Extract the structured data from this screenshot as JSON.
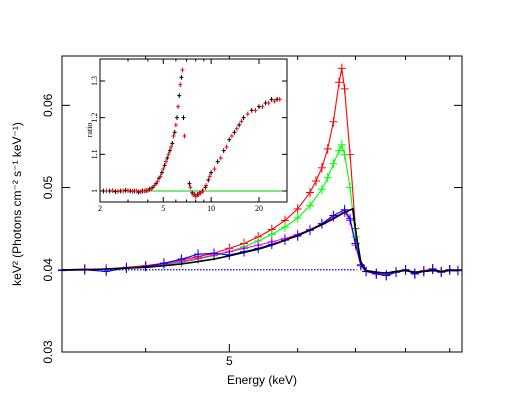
{
  "chart_data": [
    {
      "id": "main",
      "type": "line",
      "xlabel": "Energy (keV)",
      "ylabel": "keV² (Photons cm⁻² s⁻¹ keV⁻¹)",
      "xscale": "log",
      "xlim": [
        3.2,
        9.3
      ],
      "ylim": [
        0.03,
        0.066
      ],
      "x_ticks": [
        5
      ],
      "x_tick_labels": [
        "5"
      ],
      "y_ticks": [
        0.03,
        0.04,
        0.05,
        0.06
      ],
      "y_tick_labels": [
        "0.03",
        "0.04",
        "0.05",
        "0.06"
      ],
      "grid": false,
      "continuum": {
        "color": "#0000ff",
        "style": "dotted",
        "x": [
          3.2,
          7.02
        ],
        "y": [
          0.04,
          0.04
        ]
      },
      "series": [
        {
          "color": "#ff0000",
          "style": "line+errorbars",
          "x": [
            3.2,
            3.4,
            3.6,
            3.8,
            4.0,
            4.2,
            4.4,
            4.6,
            4.8,
            5.0,
            5.2,
            5.4,
            5.6,
            5.8,
            6.0,
            6.2,
            6.3,
            6.4,
            6.5,
            6.6,
            6.7,
            6.75,
            6.8,
            6.9,
            7.0,
            7.1,
            7.2,
            7.4,
            7.6,
            7.8,
            8.0,
            8.2,
            8.4,
            8.6,
            8.8,
            9.0,
            9.2
          ],
          "y": [
            0.04,
            0.0401,
            0.0401,
            0.0403,
            0.0405,
            0.0408,
            0.0412,
            0.0416,
            0.042,
            0.0426,
            0.0432,
            0.044,
            0.0449,
            0.046,
            0.0474,
            0.0494,
            0.0508,
            0.0524,
            0.0547,
            0.058,
            0.0628,
            0.0645,
            0.062,
            0.054,
            0.045,
            0.0405,
            0.0398,
            0.0395,
            0.0393,
            0.0397,
            0.04,
            0.0395,
            0.0399,
            0.0401,
            0.0398,
            0.04,
            0.0399
          ]
        },
        {
          "color": "#00ff00",
          "style": "line+errorbars",
          "x": [
            3.2,
            3.4,
            3.6,
            3.8,
            4.0,
            4.2,
            4.4,
            4.6,
            4.8,
            5.0,
            5.2,
            5.4,
            5.6,
            5.8,
            6.0,
            6.2,
            6.4,
            6.5,
            6.6,
            6.7,
            6.75,
            6.8,
            6.9,
            7.0,
            7.1,
            7.2,
            7.4,
            7.6,
            7.8,
            8.0,
            8.2,
            8.4,
            8.6,
            8.8,
            9.0,
            9.2
          ],
          "y": [
            0.04,
            0.0401,
            0.0401,
            0.0402,
            0.0404,
            0.0406,
            0.0409,
            0.0413,
            0.0417,
            0.0422,
            0.0428,
            0.0435,
            0.0443,
            0.0452,
            0.0463,
            0.0478,
            0.0498,
            0.0512,
            0.0529,
            0.0545,
            0.0552,
            0.054,
            0.05,
            0.044,
            0.0405,
            0.0398,
            0.0396,
            0.0394,
            0.0397,
            0.0399,
            0.0396,
            0.0398,
            0.04,
            0.0397,
            0.04,
            0.0399
          ]
        },
        {
          "color": "#ff00ff",
          "style": "line+errorbars",
          "x": [
            3.2,
            3.4,
            3.6,
            3.8,
            4.0,
            4.2,
            4.4,
            4.6,
            4.8,
            5.0,
            5.2,
            5.4,
            5.6,
            5.8,
            6.0,
            6.2,
            6.4,
            6.6,
            6.8,
            6.9,
            7.0,
            7.1,
            7.2,
            7.4,
            7.6,
            7.8,
            8.0,
            8.2,
            8.4,
            8.6,
            8.8,
            9.0,
            9.2
          ],
          "y": [
            0.04,
            0.0401,
            0.0401,
            0.0402,
            0.0404,
            0.0407,
            0.041,
            0.0414,
            0.0418,
            0.0422,
            0.0426,
            0.043,
            0.0434,
            0.0438,
            0.0443,
            0.0449,
            0.0456,
            0.0464,
            0.047,
            0.046,
            0.043,
            0.0405,
            0.0398,
            0.0396,
            0.0394,
            0.0398,
            0.04,
            0.0396,
            0.0398,
            0.0401,
            0.0398,
            0.04,
            0.0399
          ]
        },
        {
          "color": "#0000ff",
          "style": "line+errorbars",
          "x": [
            3.2,
            3.4,
            3.6,
            3.8,
            4.0,
            4.2,
            4.4,
            4.6,
            4.8,
            5.0,
            5.2,
            5.4,
            5.6,
            5.8,
            6.0,
            6.2,
            6.4,
            6.6,
            6.8,
            6.9,
            7.0,
            7.1,
            7.2,
            7.4,
            7.6,
            7.8,
            8.0,
            8.2,
            8.4,
            8.6,
            8.8,
            9.0,
            9.2
          ],
          "y": [
            0.0399,
            0.04,
            0.0398,
            0.0402,
            0.0404,
            0.0408,
            0.0413,
            0.0419,
            0.042,
            0.0418,
            0.0422,
            0.0426,
            0.0431,
            0.0436,
            0.0441,
            0.0448,
            0.0456,
            0.0466,
            0.0473,
            0.0462,
            0.0432,
            0.0406,
            0.0398,
            0.0395,
            0.0393,
            0.0397,
            0.04,
            0.0395,
            0.0398,
            0.0401,
            0.0397,
            0.04,
            0.0399
          ]
        },
        {
          "color": "#000000",
          "style": "line",
          "x": [
            3.2,
            3.4,
            3.6,
            3.8,
            4.0,
            4.2,
            4.4,
            4.6,
            4.8,
            5.0,
            5.2,
            5.4,
            5.6,
            5.8,
            6.0,
            6.2,
            6.4,
            6.6,
            6.8,
            6.95,
            7.02,
            7.1,
            7.2,
            7.4,
            7.6,
            7.8,
            8.0,
            8.2,
            8.4,
            8.6,
            8.8,
            9.0,
            9.2
          ],
          "y": [
            0.04,
            0.04,
            0.0401,
            0.0402,
            0.0403,
            0.0405,
            0.0407,
            0.041,
            0.0413,
            0.0417,
            0.0421,
            0.0425,
            0.043,
            0.0436,
            0.0442,
            0.0448,
            0.0455,
            0.0462,
            0.047,
            0.0474,
            0.044,
            0.041,
            0.0399,
            0.0397,
            0.0396,
            0.0398,
            0.0399,
            0.0397,
            0.0398,
            0.0399,
            0.0398,
            0.0399,
            0.0399
          ]
        }
      ]
    },
    {
      "id": "inset",
      "type": "scatter",
      "xlabel": "",
      "ylabel": "ratio",
      "xscale": "log",
      "xlim": [
        2,
        30
      ],
      "ylim": [
        0.97,
        1.36
      ],
      "x_ticks": [
        2,
        5,
        10,
        20
      ],
      "x_tick_labels": [
        "2",
        "5",
        "10",
        "20"
      ],
      "y_ticks": [
        1.0,
        1.1,
        1.2,
        1.3
      ],
      "y_tick_labels": [
        "1",
        "1.1",
        "1.2",
        "1.3"
      ],
      "grid": false,
      "reference_line": {
        "color": "#00cc00",
        "y": 1.0
      },
      "series": [
        {
          "color": "#000000",
          "style": "errorbars",
          "x": [
            2.1,
            2.3,
            2.5,
            2.7,
            2.9,
            3.1,
            3.3,
            3.5,
            3.7,
            3.9,
            4.1,
            4.3,
            4.5,
            4.7,
            4.9,
            5.1,
            5.3,
            5.5,
            5.7,
            5.9,
            6.1,
            6.3,
            6.5,
            6.7,
            7.3,
            7.6,
            7.9,
            8.2,
            8.5,
            8.8,
            9.2,
            9.6,
            10.0,
            11.0,
            12.0,
            13.0,
            14.0,
            15.0,
            16.0,
            18.0,
            20.0,
            22.0,
            24.0,
            26.0
          ],
          "y": [
            1.0,
            1.0,
            0.998,
            1.0,
            1.002,
            1.0,
            1.0,
            0.997,
            1.0,
            1.001,
            1.005,
            1.01,
            1.02,
            1.035,
            1.05,
            1.07,
            1.09,
            1.11,
            1.13,
            1.16,
            1.2,
            1.26,
            1.31,
            1.2,
            1.02,
            0.995,
            0.99,
            0.99,
            0.995,
            1.0,
            1.01,
            1.03,
            1.05,
            1.08,
            1.11,
            1.14,
            1.16,
            1.18,
            1.2,
            1.22,
            1.23,
            1.24,
            1.25,
            1.25
          ]
        },
        {
          "color": "#ff0000",
          "style": "errorbars",
          "x": [
            2.2,
            2.4,
            2.6,
            2.8,
            3.0,
            3.2,
            3.4,
            3.6,
            3.8,
            4.0,
            4.2,
            4.4,
            4.6,
            4.8,
            5.0,
            5.2,
            5.4,
            5.6,
            5.8,
            6.0,
            6.2,
            6.4,
            6.6,
            6.8,
            7.4,
            7.7,
            8.0,
            8.3,
            8.6,
            8.9,
            9.3,
            9.8,
            10.5,
            11.5,
            12.5,
            13.5,
            14.5,
            15.5,
            17.0,
            19.0,
            21.0,
            23.0,
            25.0,
            27.0
          ],
          "y": [
            1.0,
            1.001,
            0.999,
            1.0,
            1.001,
            0.999,
            1.0,
            0.998,
            1.0,
            1.002,
            1.007,
            1.015,
            1.025,
            1.04,
            1.06,
            1.08,
            1.1,
            1.12,
            1.15,
            1.18,
            1.23,
            1.29,
            1.33,
            1.15,
            1.01,
            0.99,
            0.985,
            0.99,
            0.995,
            1.0,
            1.015,
            1.04,
            1.06,
            1.09,
            1.12,
            1.15,
            1.17,
            1.19,
            1.21,
            1.22,
            1.23,
            1.24,
            1.245,
            1.25
          ]
        }
      ]
    }
  ]
}
